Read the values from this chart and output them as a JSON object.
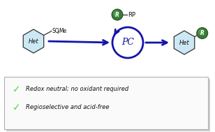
{
  "bg_color": "#ffffff",
  "box_border_color": "#b0b0b0",
  "box_shadow_color": "#cccccc",
  "arrow_color": "#1414aa",
  "hex_fill": "#cce8f4",
  "hex_stroke": "#333333",
  "green_fill_outer": "#3a7a3a",
  "green_fill_inner": "#2a6a2a",
  "green_stroke": "#1a4a1a",
  "check_color": "#44dd44",
  "text_color": "#111111",
  "bullet1": "Redox neutral; no oxidant required",
  "bullet2": "Regioselective and acid-free",
  "het_label": "Het",
  "pc_label": "PC",
  "r_label": "R",
  "rp_label": "RP",
  "fig_width": 3.08,
  "fig_height": 1.89,
  "dpi": 100
}
